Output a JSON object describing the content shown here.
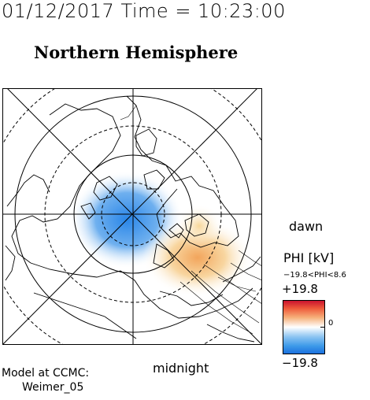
{
  "header": {
    "timestamp": "01/12/2017 Time = 10:23:00",
    "title": "Northern Hemisphere"
  },
  "map": {
    "orientation_labels": {
      "dawn": "dawn",
      "midnight": "midnight"
    },
    "grid": true
  },
  "colorbar": {
    "title": "PHI [kV]",
    "range_text": "−19.8<PHI<8.6",
    "max_label": "+19.8",
    "min_label": "−19.8",
    "zero_label": "0",
    "colors": {
      "negative": "#1e78e6",
      "neutral": "#ffffff",
      "positive": "#d22014"
    }
  },
  "footer": {
    "model_line1": "Model at CCMC:",
    "model_line2": "Weimer_05"
  }
}
